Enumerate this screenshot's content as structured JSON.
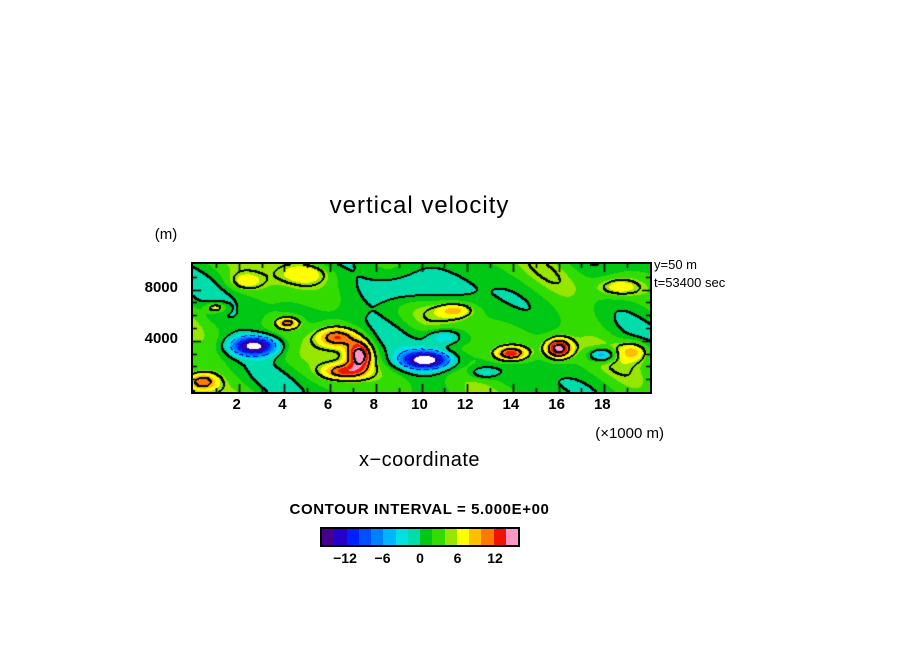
{
  "chart": {
    "title": "vertical velocity",
    "y_unit_label": "(m)",
    "x_axis_label": "x−coordinate",
    "x_unit_label": "(×1000 m)",
    "annotations": {
      "line1": "y=50 m",
      "line2": "t=53400 sec"
    },
    "contour_text": "CONTOUR INTERVAL  =  5.000E+00"
  },
  "chart_data": {
    "type": "heatmap",
    "title": "vertical velocity",
    "xlabel": "x−coordinate",
    "x_units": "×1000 m",
    "y_units": "m",
    "x_range": [
      0,
      20
    ],
    "y_range": [
      0,
      10
    ],
    "x_ticks_labeled": [
      2,
      4,
      6,
      8,
      10,
      12,
      14,
      16,
      18
    ],
    "y_ticks_labeled": [
      4000,
      8000
    ],
    "minor_tick_step_x": 1,
    "minor_tick_step_y": 1,
    "contour_interval": 5.0,
    "line_levels": [
      -15,
      -10,
      -5,
      0,
      5,
      10,
      15
    ],
    "negative_contour_style": "dashed-blue",
    "positive_contour_style": "solid-black",
    "negative_contour_color": "#0000c8",
    "positive_contour_color": "#000000",
    "slice": {
      "y": "50 m",
      "t": "53400 sec"
    },
    "value_min_color_cutoff": -16,
    "palette_step": 2,
    "overflow_low_color": "#ffffff",
    "palette": [
      "#46008c",
      "#2400c8",
      "#0020ff",
      "#0050ff",
      "#0082ff",
      "#00b4ff",
      "#00e1e1",
      "#00dcaa",
      "#00c814",
      "#32dc00",
      "#96e600",
      "#ffff00",
      "#ffbe00",
      "#ff7800",
      "#f01400",
      "#ff96c8"
    ],
    "background_base": 2.0,
    "background_waves": [
      [
        1.5,
        1.05,
        0.45,
        0.3
      ],
      [
        1.2,
        0.52,
        1.1,
        2.0
      ],
      [
        0.8,
        1.8,
        0.75,
        4.2
      ]
    ],
    "blobs": [
      {
        "x": 2.7,
        "y": 3.6,
        "a": -19,
        "sx": 1.0,
        "sy": 0.75
      },
      {
        "x": 1.0,
        "y": 6.6,
        "a": 7,
        "sx": 0.45,
        "sy": 0.4
      },
      {
        "x": 4.15,
        "y": 5.4,
        "a": 9,
        "sx": 0.5,
        "sy": 0.45
      },
      {
        "x": 6.3,
        "y": 4.3,
        "a": 10,
        "sx": 0.9,
        "sy": 0.8
      },
      {
        "x": 7.3,
        "y": 2.9,
        "a": 14,
        "sx": 0.55,
        "sy": 1.1
      },
      {
        "x": 6.6,
        "y": 1.6,
        "a": 9,
        "sx": 0.9,
        "sy": 0.6
      },
      {
        "x": 10.2,
        "y": 2.5,
        "a": -20,
        "sx": 1.05,
        "sy": 0.7
      },
      {
        "x": 11.0,
        "y": 4.3,
        "a": -7,
        "sx": 0.8,
        "sy": 0.7
      },
      {
        "x": 9.3,
        "y": 8.0,
        "a": -5.5,
        "sx": 1.6,
        "sy": 1.3
      },
      {
        "x": 11.5,
        "y": 6.4,
        "a": 6.5,
        "sx": 0.8,
        "sy": 0.6
      },
      {
        "x": 13.9,
        "y": 3.0,
        "a": 12,
        "sx": 0.75,
        "sy": 0.6
      },
      {
        "x": 16.0,
        "y": 3.4,
        "a": 15,
        "sx": 0.55,
        "sy": 0.75
      },
      {
        "x": 17.9,
        "y": 2.9,
        "a": -10,
        "sx": 0.55,
        "sy": 0.5
      },
      {
        "x": 12.7,
        "y": 1.5,
        "a": -5,
        "sx": 0.6,
        "sy": 0.45
      },
      {
        "x": 0.4,
        "y": 0.8,
        "a": 9,
        "sx": 0.7,
        "sy": 0.7
      },
      {
        "x": 18.6,
        "y": 8.2,
        "a": 5.5,
        "sx": 1.0,
        "sy": 0.8
      },
      {
        "x": 5.0,
        "y": 9.3,
        "a": 4.5,
        "sx": 1.2,
        "sy": 0.9
      },
      {
        "x": 2.3,
        "y": 8.6,
        "a": 4,
        "sx": 0.8,
        "sy": 0.7
      },
      {
        "x": 19.3,
        "y": 3.2,
        "a": 7,
        "sx": 0.7,
        "sy": 0.8
      }
    ]
  },
  "colorbar": {
    "range": [
      -16,
      16
    ],
    "labels": [
      {
        "text": "−12",
        "value": -12
      },
      {
        "text": "−6",
        "value": -6
      },
      {
        "text": "0",
        "value": 0
      },
      {
        "text": "6",
        "value": 6
      },
      {
        "text": "12",
        "value": 12
      }
    ]
  }
}
